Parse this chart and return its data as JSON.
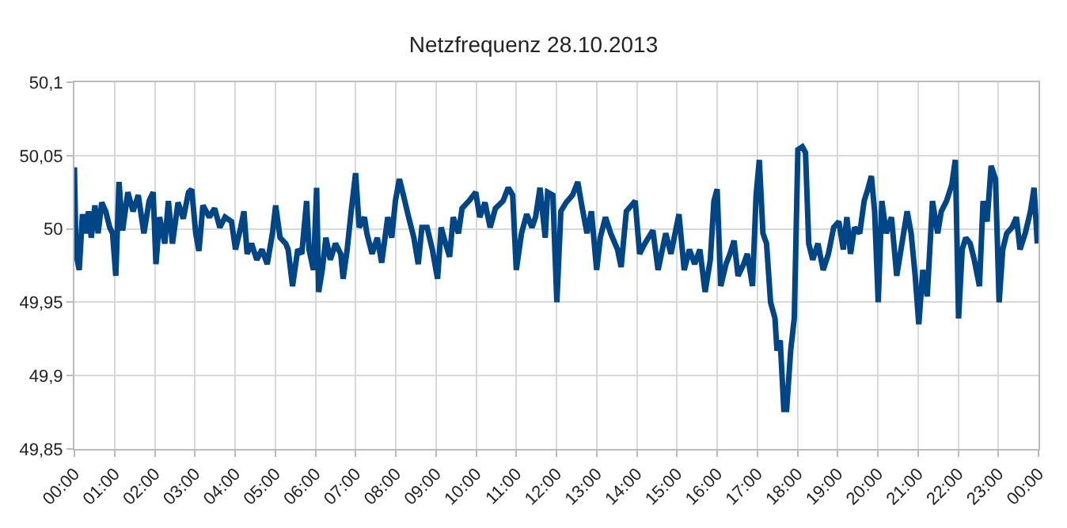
{
  "chart_data": {
    "type": "line",
    "title": "Netzfrequenz 28.10.2013",
    "x": [
      0.0,
      0.04,
      0.12,
      0.2,
      0.29,
      0.35,
      0.42,
      0.51,
      0.59,
      0.68,
      0.78,
      0.88,
      0.95,
      1.03,
      1.11,
      1.2,
      1.33,
      1.46,
      1.59,
      1.73,
      1.86,
      1.96,
      2.03,
      2.12,
      2.25,
      2.34,
      2.44,
      2.58,
      2.71,
      2.84,
      2.92,
      3.02,
      3.1,
      3.2,
      3.36,
      3.49,
      3.62,
      3.75,
      3.91,
      4.01,
      4.14,
      4.22,
      4.3,
      4.41,
      4.54,
      4.67,
      4.8,
      4.93,
      5.01,
      5.12,
      5.26,
      5.32,
      5.43,
      5.56,
      5.66,
      5.78,
      5.84,
      5.95,
      6.03,
      6.08,
      6.17,
      6.26,
      6.37,
      6.5,
      6.63,
      6.69,
      6.79,
      6.89,
      7.0,
      7.09,
      7.22,
      7.28,
      7.41,
      7.54,
      7.65,
      7.8,
      7.9,
      7.99,
      8.09,
      8.19,
      8.32,
      8.45,
      8.56,
      8.65,
      8.78,
      8.91,
      9.04,
      9.13,
      9.24,
      9.34,
      9.43,
      9.56,
      9.65,
      9.82,
      9.99,
      10.09,
      10.22,
      10.35,
      10.48,
      10.67,
      10.8,
      10.91,
      11.0,
      11.13,
      11.26,
      11.39,
      11.48,
      11.59,
      11.72,
      11.78,
      11.91,
      12.01,
      12.11,
      12.24,
      12.4,
      12.53,
      12.63,
      12.76,
      12.87,
      13.0,
      13.09,
      13.22,
      13.35,
      13.52,
      13.61,
      13.74,
      13.96,
      14.07,
      14.2,
      14.4,
      14.53,
      14.72,
      14.85,
      15.05,
      15.18,
      15.31,
      15.44,
      15.57,
      15.7,
      15.83,
      15.92,
      16.0,
      16.09,
      16.22,
      16.32,
      16.42,
      16.52,
      16.66,
      16.75,
      16.88,
      16.97,
      17.05,
      17.14,
      17.23,
      17.33,
      17.44,
      17.49,
      17.57,
      17.66,
      17.73,
      17.83,
      17.92,
      18.01,
      18.12,
      18.2,
      18.28,
      18.38,
      18.51,
      18.64,
      18.77,
      18.9,
      19.03,
      19.14,
      19.23,
      19.32,
      19.42,
      19.55,
      19.66,
      19.75,
      19.84,
      19.92,
      20.01,
      20.1,
      20.21,
      20.34,
      20.47,
      20.6,
      20.73,
      20.83,
      20.93,
      21.02,
      21.12,
      21.23,
      21.36,
      21.49,
      21.58,
      21.71,
      21.84,
      21.93,
      22.01,
      22.1,
      22.19,
      22.3,
      22.4,
      22.53,
      22.62,
      22.72,
      22.82,
      22.93,
      23.02,
      23.11,
      23.21,
      23.34,
      23.45,
      23.54,
      23.67,
      23.8,
      23.89,
      23.97
    ],
    "series": [
      {
        "color": "#004586",
        "values": [
          50.042,
          49.983,
          49.972,
          50.01,
          49.997,
          50.012,
          49.994,
          50.016,
          49.997,
          50.018,
          50.012,
          50.001,
          49.997,
          49.968,
          50.032,
          49.999,
          50.025,
          50.012,
          50.023,
          49.997,
          50.019,
          50.025,
          49.976,
          50.008,
          49.99,
          50.019,
          49.99,
          50.018,
          50.007,
          50.025,
          50.027,
          49.997,
          49.985,
          50.016,
          50.008,
          50.014,
          50.001,
          50.008,
          50.005,
          49.986,
          50.001,
          50.012,
          49.983,
          49.99,
          49.979,
          49.986,
          49.976,
          49.997,
          50.016,
          49.994,
          49.99,
          49.986,
          49.961,
          49.986,
          49.983,
          50.019,
          49.986,
          49.972,
          50.028,
          49.957,
          49.972,
          49.994,
          49.979,
          49.99,
          49.983,
          49.966,
          49.986,
          50.012,
          50.038,
          50.001,
          50.008,
          49.997,
          49.983,
          49.994,
          49.977,
          50.008,
          49.994,
          50.019,
          50.034,
          50.023,
          50.008,
          49.994,
          49.976,
          50.001,
          50.001,
          49.986,
          49.966,
          50.001,
          49.99,
          49.981,
          50.008,
          49.997,
          50.014,
          50.019,
          50.025,
          50.008,
          50.018,
          50.001,
          50.014,
          50.019,
          50.028,
          50.023,
          49.972,
          49.997,
          50.01,
          50.001,
          50.008,
          50.028,
          49.994,
          50.025,
          50.023,
          49.95,
          50.012,
          50.018,
          50.023,
          50.032,
          50.016,
          49.997,
          50.012,
          49.972,
          49.994,
          50.008,
          49.997,
          49.986,
          49.974,
          50.012,
          50.019,
          49.983,
          49.99,
          49.999,
          49.972,
          49.997,
          49.983,
          50.01,
          49.972,
          49.986,
          49.976,
          49.986,
          49.957,
          49.979,
          50.019,
          50.027,
          49.961,
          49.976,
          49.983,
          49.992,
          49.968,
          49.976,
          49.983,
          49.961,
          50.023,
          50.047,
          49.997,
          49.99,
          49.95,
          49.939,
          49.917,
          49.924,
          49.877,
          49.877,
          49.917,
          49.939,
          50.054,
          50.056,
          50.052,
          49.99,
          49.979,
          49.99,
          49.972,
          49.983,
          50.001,
          50.005,
          49.986,
          50.008,
          49.983,
          50.001,
          49.997,
          50.019,
          50.027,
          50.036,
          50.012,
          49.95,
          50.019,
          49.997,
          50.008,
          49.968,
          49.99,
          50.012,
          49.997,
          49.968,
          49.935,
          49.972,
          49.954,
          50.019,
          49.997,
          50.012,
          50.019,
          50.03,
          50.047,
          49.939,
          49.986,
          49.994,
          49.99,
          49.979,
          49.961,
          50.019,
          50.005,
          50.043,
          50.034,
          49.95,
          49.986,
          49.997,
          50.001,
          50.008,
          49.986,
          49.997,
          50.012,
          50.028,
          49.99
        ]
      }
    ],
    "xlim": [
      0,
      24
    ],
    "xticks": [
      {
        "value": 0,
        "label": "00:00"
      },
      {
        "value": 1,
        "label": "01:00"
      },
      {
        "value": 2,
        "label": "02:00"
      },
      {
        "value": 3,
        "label": "03:00"
      },
      {
        "value": 4,
        "label": "04:00"
      },
      {
        "value": 5,
        "label": "05:00"
      },
      {
        "value": 6,
        "label": "06:00"
      },
      {
        "value": 7,
        "label": "07:00"
      },
      {
        "value": 8,
        "label": "08:00"
      },
      {
        "value": 9,
        "label": "09:00"
      },
      {
        "value": 10,
        "label": "10:00"
      },
      {
        "value": 11,
        "label": "11:00"
      },
      {
        "value": 12,
        "label": "12:00"
      },
      {
        "value": 13,
        "label": "13:00"
      },
      {
        "value": 14,
        "label": "14:00"
      },
      {
        "value": 15,
        "label": "15:00"
      },
      {
        "value": 16,
        "label": "16:00"
      },
      {
        "value": 17,
        "label": "17:00"
      },
      {
        "value": 18,
        "label": "18:00"
      },
      {
        "value": 19,
        "label": "19:00"
      },
      {
        "value": 20,
        "label": "20:00"
      },
      {
        "value": 21,
        "label": "21:00"
      },
      {
        "value": 22,
        "label": "22:00"
      },
      {
        "value": 23,
        "label": "23:00"
      },
      {
        "value": 24,
        "label": "00:00"
      }
    ],
    "ylim": [
      49.85,
      50.1
    ],
    "yticks": [
      {
        "value": 49.85,
        "label": "49,85"
      },
      {
        "value": 49.9,
        "label": "49,9"
      },
      {
        "value": 49.95,
        "label": "49,95"
      },
      {
        "value": 50,
        "label": "50"
      },
      {
        "value": 50.05,
        "label": "50,05"
      },
      {
        "value": 50.1,
        "label": "50,1"
      }
    ],
    "grid": true,
    "marker": "none",
    "line_style": "solid"
  }
}
